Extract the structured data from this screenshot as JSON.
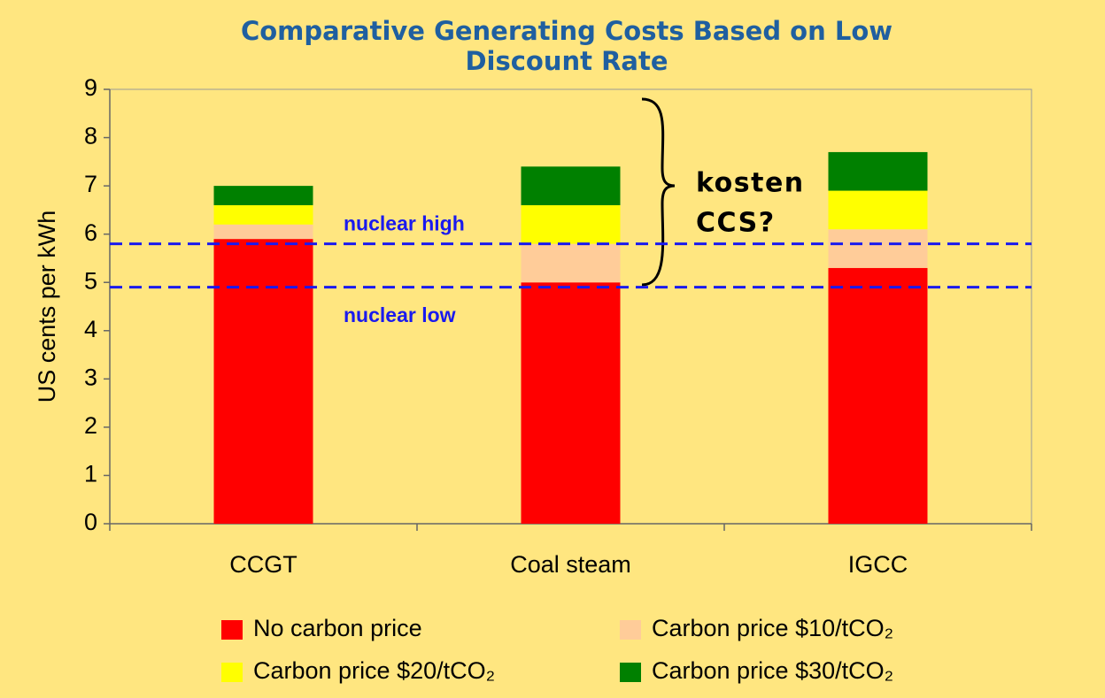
{
  "chart_data": {
    "type": "stacked_bar",
    "title": "Comparative Generating Costs Based on Low Discount Rate",
    "y_label": "US cents per kWh",
    "categories": [
      "CCGT",
      "Coal steam",
      "IGCC"
    ],
    "series": [
      {
        "name": "No carbon price",
        "color": "#ff0000",
        "values": [
          5.9,
          5.0,
          5.3
        ]
      },
      {
        "name": "Carbon price $10/tCO₂",
        "color": "#ffcc99",
        "values": [
          0.3,
          0.8,
          0.8
        ]
      },
      {
        "name": "Carbon price $20/tCO₂",
        "color": "#ffff00",
        "values": [
          0.4,
          0.8,
          0.8
        ]
      },
      {
        "name": "Carbon price $30/tCO₂",
        "color": "#008000",
        "values": [
          0.4,
          0.8,
          0.8
        ]
      }
    ],
    "ylim": [
      0,
      9
    ],
    "yticks": [
      0,
      1,
      2,
      3,
      4,
      5,
      6,
      7,
      8,
      9
    ],
    "reference_lines": [
      {
        "label": "nuclear high",
        "value": 5.8,
        "color": "#1a1aee"
      },
      {
        "label": "nuclear low",
        "value": 4.9,
        "color": "#1a1aee"
      }
    ],
    "annotation": [
      "kosten",
      "CCS?"
    ]
  }
}
